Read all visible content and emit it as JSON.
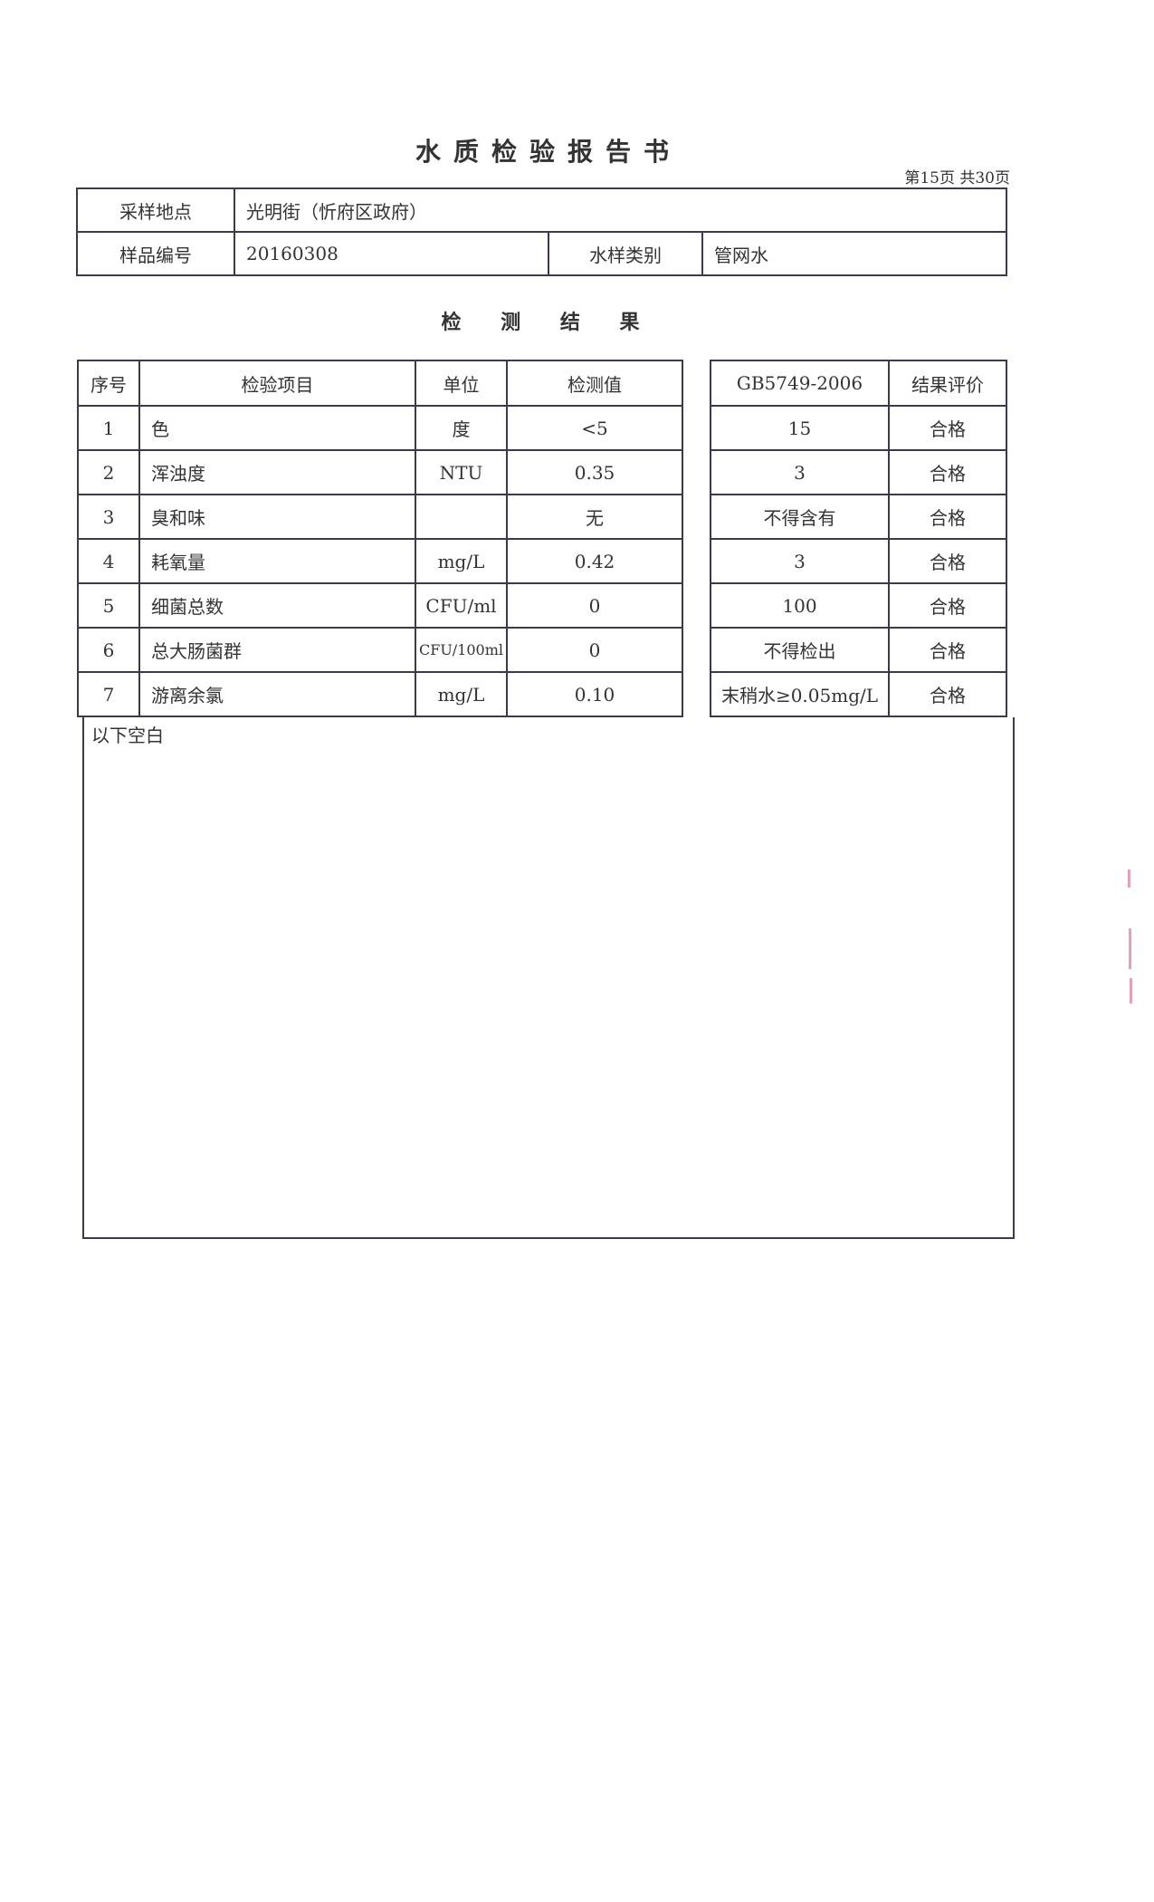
{
  "title": "水质检验报告书",
  "page_indicator": "第15页 共30页",
  "info": {
    "location_label": "采样地点",
    "location_value": "光明街（忻府区政府）",
    "sample_no_label": "样品编号",
    "sample_no_value": "20160308",
    "sample_type_label": "水样类别",
    "sample_type_value": "管网水"
  },
  "results_title": "检 测 结 果",
  "results": {
    "headers": [
      "序号",
      "检验项目",
      "单位",
      "检测值",
      "GB5749-2006",
      "结果评价"
    ],
    "rows": [
      {
        "no": "1",
        "item": "色",
        "unit": "度",
        "value": "<5",
        "standard": "15",
        "eval": "合格"
      },
      {
        "no": "2",
        "item": "浑浊度",
        "unit": "NTU",
        "value": "0.35",
        "standard": "3",
        "eval": "合格"
      },
      {
        "no": "3",
        "item": "臭和味",
        "unit": "",
        "value": "无",
        "standard": "不得含有",
        "eval": "合格"
      },
      {
        "no": "4",
        "item": "耗氧量",
        "unit": "mg/L",
        "value": "0.42",
        "standard": "3",
        "eval": "合格"
      },
      {
        "no": "5",
        "item": "细菌总数",
        "unit": "CFU/ml",
        "value": "0",
        "standard": "100",
        "eval": "合格"
      },
      {
        "no": "6",
        "item": "总大肠菌群",
        "unit": "CFU/100ml",
        "value": "0",
        "standard": "不得检出",
        "eval": "合格"
      },
      {
        "no": "7",
        "item": "游离余氯",
        "unit": "mg/L",
        "value": "0.10",
        "standard": "末稍水≥0.05mg/L",
        "eval": "合格"
      }
    ]
  },
  "remark": "以下空白"
}
